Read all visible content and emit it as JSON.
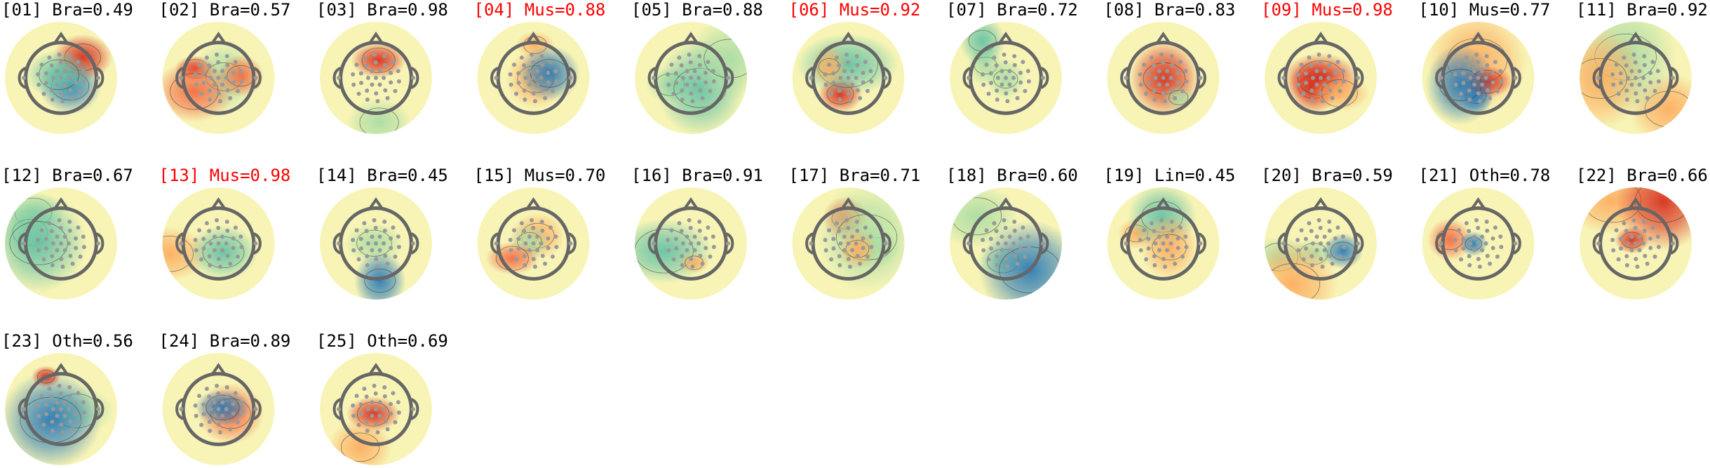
{
  "components": [
    {
      "label": "[01] Bra=0.49",
      "color": "black"
    },
    {
      "label": "[02] Bra=0.57",
      "color": "black"
    },
    {
      "label": "[03] Bra=0.98",
      "color": "black"
    },
    {
      "label": "[04] Mus=0.88",
      "color": "red"
    },
    {
      "label": "[05] Bra=0.88",
      "color": "black"
    },
    {
      "label": "[06] Mus=0.92",
      "color": "red"
    },
    {
      "label": "[07] Bra=0.72",
      "color": "black"
    },
    {
      "label": "[08] Bra=0.83",
      "color": "black"
    },
    {
      "label": "[09] Mus=0.98",
      "color": "red"
    },
    {
      "label": "[10] Mus=0.77",
      "color": "black"
    },
    {
      "label": "[11] Bra=0.92",
      "color": "black"
    },
    {
      "label": "[12] Bra=0.67",
      "color": "black"
    },
    {
      "label": "[13] Mus=0.98",
      "color": "red"
    },
    {
      "label": "[14] Bra=0.45",
      "color": "black"
    },
    {
      "label": "[15] Mus=0.70",
      "color": "black"
    },
    {
      "label": "[16] Bra=0.91",
      "color": "black"
    },
    {
      "label": "[17] Bra=0.71",
      "color": "black"
    },
    {
      "label": "[18] Bra=0.60",
      "color": "black"
    },
    {
      "label": "[19] Lin=0.45",
      "color": "black"
    },
    {
      "label": "[20] Bra=0.59",
      "color": "black"
    },
    {
      "label": "[21] Oth=0.78",
      "color": "black"
    },
    {
      "label": "[22] Bra=0.66",
      "color": "black"
    },
    {
      "label": "[23] Oth=0.56",
      "color": "black"
    },
    {
      "label": "[24] Bra=0.89",
      "color": "black"
    },
    {
      "label": "[25] Oth=0.69",
      "color": "black"
    }
  ]
}
